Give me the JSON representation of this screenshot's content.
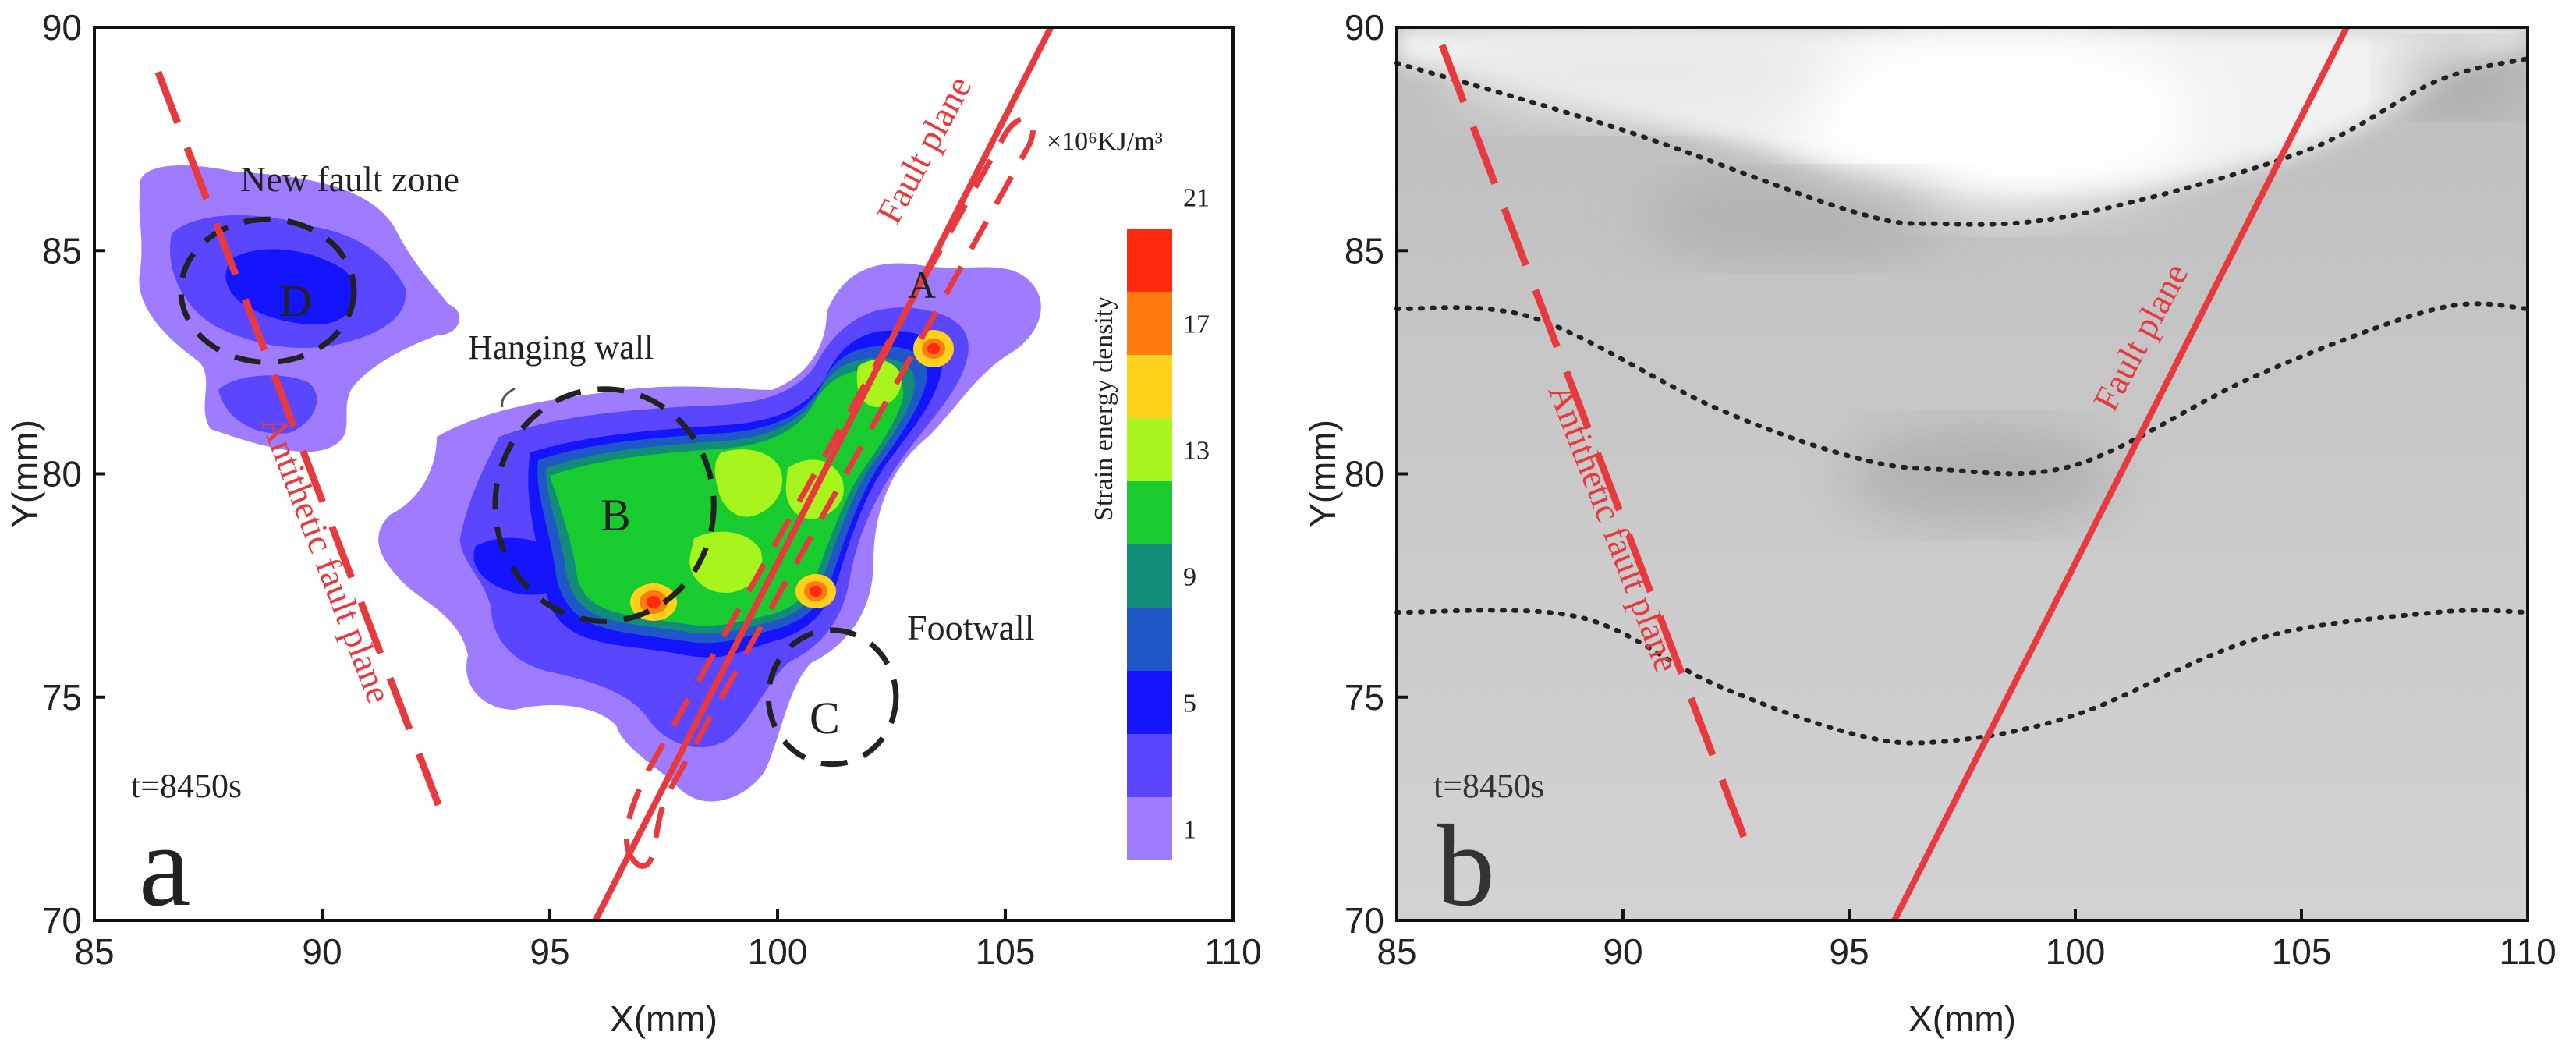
{
  "chart_data": [
    {
      "type": "heatmap",
      "panel": "a",
      "panel_label": "a",
      "xlabel": "X(mm)",
      "ylabel": "Y(mm)",
      "xlim": [
        85,
        110
      ],
      "ylim": [
        70,
        90
      ],
      "x_ticks": [
        "85",
        "90",
        "95",
        "100",
        "105",
        "110"
      ],
      "y_ticks": [
        "70",
        "75",
        "80",
        "85",
        "90"
      ],
      "time_label": "t=8450s",
      "colorbar": {
        "title": "Strain energy density",
        "unit": "×10⁶KJ/m³",
        "levels": [
          "1",
          "5",
          "9",
          "13",
          "17",
          "21"
        ],
        "colors": [
          "#9e7bff",
          "#5a46ff",
          "#1414ff",
          "#1f56c8",
          "#108c78",
          "#18cc30",
          "#a8f51e",
          "#ffd11a",
          "#ff7a10",
          "#ff2a10"
        ]
      },
      "annotations": {
        "new_fault_zone": "New fault zone",
        "hanging_wall": "Hanging wall",
        "footwall": "Footwall",
        "fault_plane": "Fault plane",
        "antithetic_fault_plane": "Antithetic fault plane",
        "zone_a": "A",
        "zone_b": "B",
        "zone_c": "C",
        "zone_d": "D"
      },
      "fault_plane_line": [
        [
          96,
          70
        ],
        [
          106,
          90
        ]
      ],
      "antithetic_fault_line": [
        [
          86.4,
          89
        ],
        [
          92.7,
          72.2
        ]
      ],
      "zone_circles": [
        {
          "label": "D",
          "cx": 88.8,
          "cy": 84.1,
          "rx": 1.9,
          "ry": 1.6
        },
        {
          "label": "B",
          "cx": 96.2,
          "cy": 79.3,
          "rx": 2.4,
          "ry": 2.6
        },
        {
          "label": "C",
          "cx": 101.2,
          "cy": 75.0,
          "rx": 1.4,
          "ry": 1.5
        }
      ]
    },
    {
      "type": "scatter",
      "panel": "b",
      "panel_label": "b",
      "xlabel": "X(mm)",
      "ylabel": "Y(mm)",
      "xlim": [
        85,
        110
      ],
      "ylim": [
        70,
        90
      ],
      "x_ticks": [
        "85",
        "90",
        "95",
        "100",
        "105",
        "110"
      ],
      "y_ticks": [
        "70",
        "75",
        "80",
        "85",
        "90"
      ],
      "time_label": "t=8450s",
      "annotations": {
        "fault_plane": "Fault plane",
        "antithetic_fault_plane": "Antithetic fault plane"
      },
      "fault_plane_line": [
        [
          96,
          70
        ],
        [
          106,
          90
        ]
      ],
      "antithetic_fault_line": [
        [
          86,
          89.6
        ],
        [
          92.7,
          71.8
        ]
      ],
      "layer_lines": [
        {
          "name": "upper",
          "points": [
            [
              85,
              89.2
            ],
            [
              90,
              87.7
            ],
            [
              95,
              85.9
            ],
            [
              97,
              85.6
            ],
            [
              100,
              85.8
            ],
            [
              105,
              87.2
            ],
            [
              108,
              88.8
            ],
            [
              110,
              89.3
            ]
          ]
        },
        {
          "name": "middle",
          "points": [
            [
              85,
              83.7
            ],
            [
              88,
              83.5
            ],
            [
              92,
              81.5
            ],
            [
              95,
              80.4
            ],
            [
              97,
              80.1
            ],
            [
              100,
              80.2
            ],
            [
              104,
              82.2
            ],
            [
              108,
              83.7
            ],
            [
              110,
              83.7
            ]
          ]
        },
        {
          "name": "lower",
          "points": [
            [
              85,
              76.9
            ],
            [
              89,
              76.8
            ],
            [
              92,
              75.3
            ],
            [
              95,
              74.2
            ],
            [
              97,
              74.0
            ],
            [
              100,
              74.6
            ],
            [
              104,
              76.3
            ],
            [
              108,
              76.9
            ],
            [
              110,
              76.9
            ]
          ]
        }
      ]
    }
  ]
}
